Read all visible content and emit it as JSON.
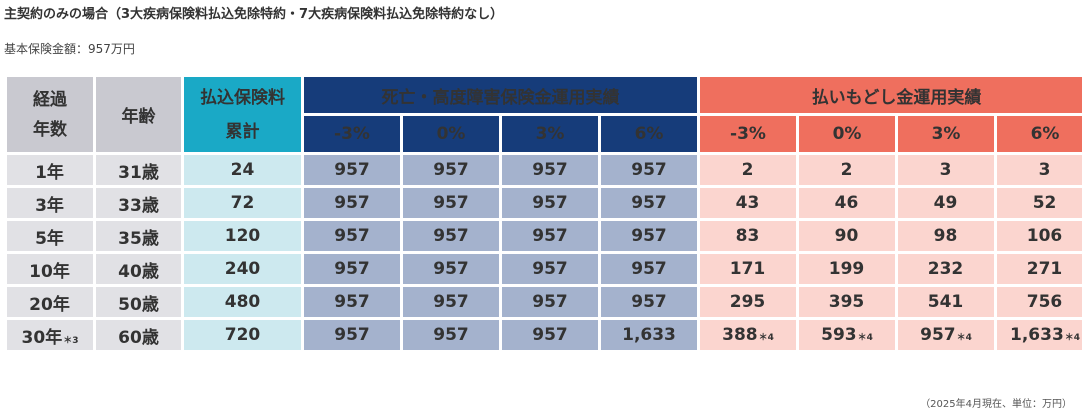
{
  "heading": "主契約のみの場合（3大疾病保険料払込免除特約・7大疾病保険料払込免除特約なし）",
  "subheading": "基本保険金額：957万円",
  "header": {
    "elapsed_line1": "経過",
    "elapsed_line2": "年数",
    "age": "年齢",
    "premium_line1": "払込保険料",
    "premium_line2": "累計",
    "death_group": "死亡・高度障害保険金運用実績",
    "surrender_group": "払いもどし金運用実績",
    "rates": [
      "-3%",
      "0%",
      "3%",
      "6%"
    ]
  },
  "rows": [
    {
      "year": "1年",
      "year_note": "",
      "age": "31歳",
      "premium": "24",
      "death": [
        "957",
        "957",
        "957",
        "957"
      ],
      "surrender": [
        "2",
        "2",
        "3",
        "3"
      ],
      "surrender_notes": [
        "",
        "",
        "",
        ""
      ]
    },
    {
      "year": "3年",
      "year_note": "",
      "age": "33歳",
      "premium": "72",
      "death": [
        "957",
        "957",
        "957",
        "957"
      ],
      "surrender": [
        "43",
        "46",
        "49",
        "52"
      ],
      "surrender_notes": [
        "",
        "",
        "",
        ""
      ]
    },
    {
      "year": "5年",
      "year_note": "",
      "age": "35歳",
      "premium": "120",
      "death": [
        "957",
        "957",
        "957",
        "957"
      ],
      "surrender": [
        "83",
        "90",
        "98",
        "106"
      ],
      "surrender_notes": [
        "",
        "",
        "",
        ""
      ]
    },
    {
      "year": "10年",
      "year_note": "",
      "age": "40歳",
      "premium": "240",
      "death": [
        "957",
        "957",
        "957",
        "957"
      ],
      "surrender": [
        "171",
        "199",
        "232",
        "271"
      ],
      "surrender_notes": [
        "",
        "",
        "",
        ""
      ]
    },
    {
      "year": "20年",
      "year_note": "",
      "age": "50歳",
      "premium": "480",
      "death": [
        "957",
        "957",
        "957",
        "957"
      ],
      "surrender": [
        "295",
        "395",
        "541",
        "756"
      ],
      "surrender_notes": [
        "",
        "",
        "",
        ""
      ]
    },
    {
      "year": "30年",
      "year_note": "＊3",
      "age": "60歳",
      "premium": "720",
      "death": [
        "957",
        "957",
        "957",
        "1,633"
      ],
      "surrender": [
        "388",
        "593",
        "957",
        "1,633"
      ],
      "surrender_notes": [
        "＊4",
        "＊4",
        "＊4",
        "＊4"
      ]
    }
  ],
  "footnote": "（2025年4月現在、単位：万円）",
  "colors": {
    "header_gray": "#c9c9d0",
    "header_teal": "#1aa9c6",
    "header_navy": "#163c7a",
    "header_red": "#ef6f5e",
    "cell_gray": "#e1e1e5",
    "cell_teal": "#cde9ef",
    "cell_navy": "#a4b2cd",
    "cell_pink": "#fbd5cf"
  }
}
